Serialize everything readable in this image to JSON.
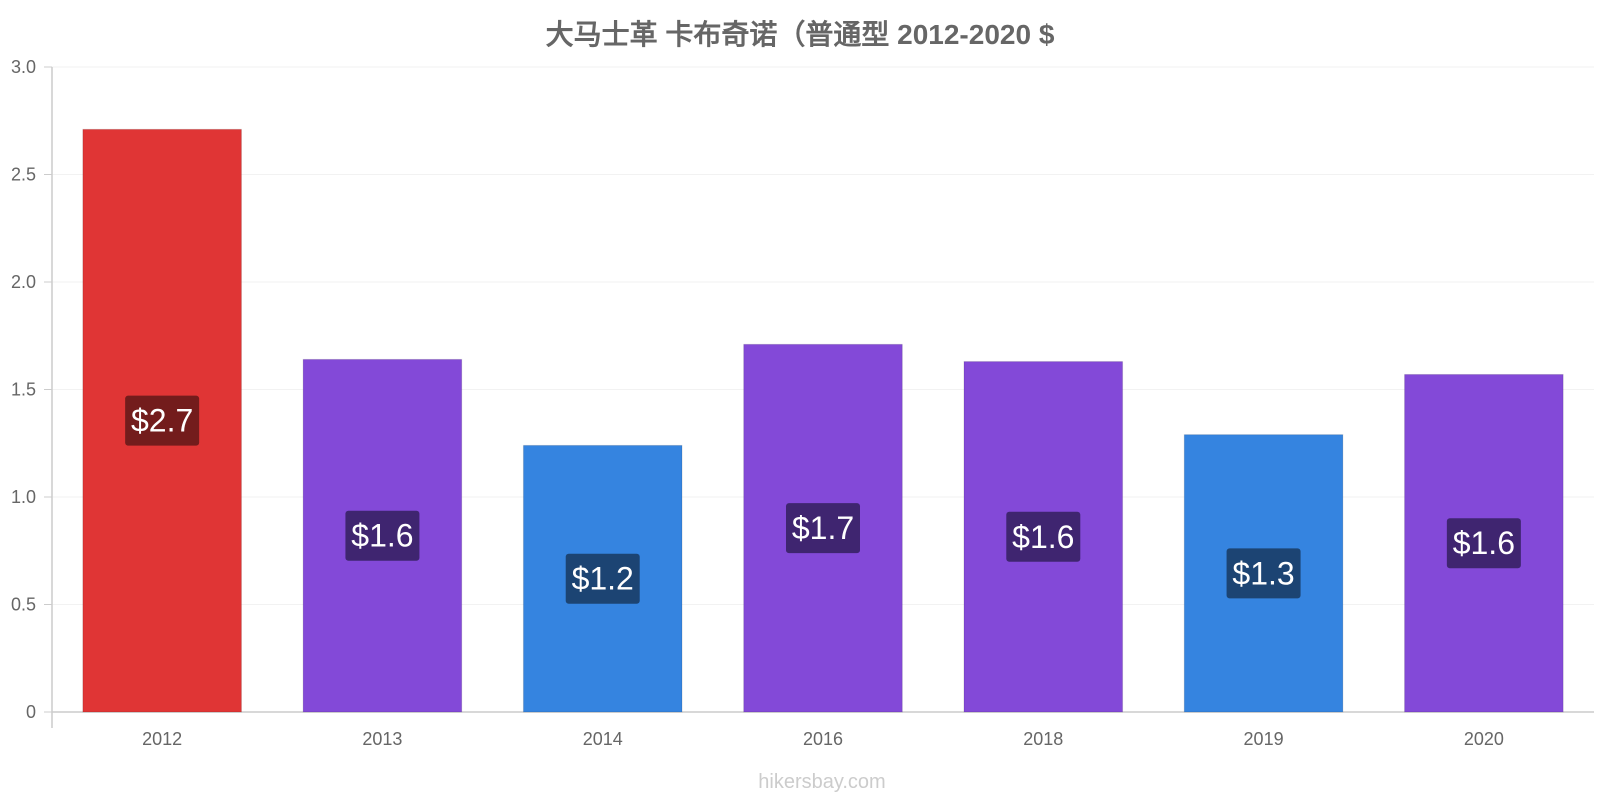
{
  "chart_data": {
    "type": "bar",
    "title": "大马士革 卡布奇诺（普通型 2012-2020 $",
    "categories": [
      "2012",
      "2013",
      "2014",
      "2016",
      "2018",
      "2019",
      "2020"
    ],
    "values": [
      2.71,
      1.64,
      1.24,
      1.71,
      1.63,
      1.29,
      1.57
    ],
    "value_labels": [
      "$2.7",
      "$1.6",
      "$1.2",
      "$1.7",
      "$1.6",
      "$1.3",
      "$1.6"
    ],
    "bar_colors": [
      "#e03535",
      "#8349d8",
      "#3584e0",
      "#8349d8",
      "#8349d8",
      "#3584e0",
      "#8349d8"
    ],
    "label_bg_colors": [
      "#731c1c",
      "#3f2570",
      "#1c4473",
      "#3f2570",
      "#3f2570",
      "#1c4473",
      "#3f2570"
    ],
    "xlabel": "",
    "ylabel": "",
    "ylim": [
      0,
      3.0
    ],
    "yticks": [
      0,
      0.5,
      1.0,
      1.5,
      2.0,
      2.5,
      3.0
    ],
    "ytick_labels": [
      "0",
      "0.5",
      "1.0",
      "1.5",
      "2.0",
      "2.5",
      "3.0"
    ],
    "grid": true,
    "legend": "none"
  },
  "footer": {
    "source": "hikersbay.com"
  },
  "colors": {
    "axis": "#cccccc",
    "grid": "#f2f2f2",
    "text": "#666666"
  }
}
